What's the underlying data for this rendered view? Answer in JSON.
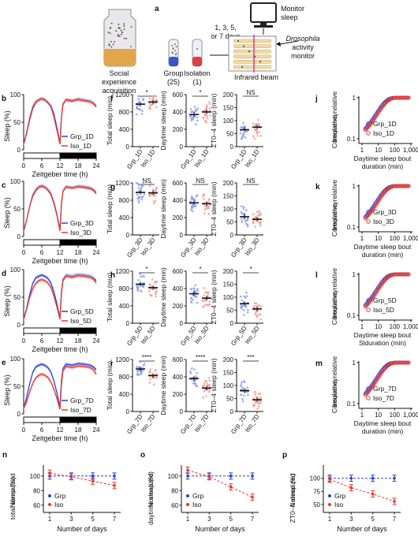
{
  "figure": {
    "schematic": {
      "panel": "a",
      "social_experience": "Social\nexperience\nacquisition",
      "group": "Group\n(25)",
      "isolation": "Isolation\n(1)",
      "days": "1, 3, 5,\nor 7 days",
      "monitor": "Monitor\nsleep",
      "drosophila": "Drosophila\nactivity\nmonitor",
      "infrared": "Infrared beam"
    },
    "colors": {
      "grp": "#2b3fe0",
      "iso": "#e8382a",
      "grp_light": "#8fa0f5",
      "iso_light": "#f5a098",
      "dark_bar": "#000000"
    }
  },
  "chart_data": [
    {
      "panel": "b",
      "type": "line",
      "xlabel": "Zeitgeber time (h)",
      "ylabel": "Sleep (%)",
      "x": [
        0,
        1,
        2,
        3,
        4,
        5,
        6,
        7,
        8,
        9,
        10,
        11,
        12,
        12.5,
        13,
        14,
        16,
        18,
        20,
        22,
        23,
        24
      ],
      "xticks": [
        0,
        6,
        12,
        18,
        24
      ],
      "yticks": [
        0,
        50,
        100
      ],
      "ylim": [
        0,
        100
      ],
      "xlim": [
        0,
        24
      ],
      "series": [
        {
          "name": "Grp_1D",
          "values": [
            10,
            30,
            55,
            75,
            85,
            90,
            92,
            90,
            85,
            80,
            65,
            40,
            12,
            60,
            82,
            90,
            88,
            92,
            90,
            88,
            85,
            80
          ]
        },
        {
          "name": "Iso_1D",
          "values": [
            10,
            32,
            58,
            78,
            87,
            91,
            93,
            91,
            86,
            78,
            60,
            35,
            10,
            58,
            83,
            91,
            89,
            91,
            89,
            87,
            84,
            78
          ]
        }
      ]
    },
    {
      "panel": "c",
      "type": "line",
      "xlabel": "Zeitgeber time (h)",
      "ylabel": "Sleep (%)",
      "x": [
        0,
        1,
        2,
        3,
        4,
        5,
        6,
        7,
        8,
        9,
        10,
        11,
        12,
        12.5,
        13,
        14,
        16,
        18,
        20,
        22,
        23,
        24
      ],
      "xticks": [
        0,
        6,
        12,
        18,
        24
      ],
      "yticks": [
        0,
        50,
        100
      ],
      "ylim": [
        0,
        100
      ],
      "xlim": [
        0,
        24
      ],
      "series": [
        {
          "name": "Grp_3D",
          "values": [
            10,
            30,
            55,
            75,
            85,
            90,
            92,
            90,
            85,
            78,
            62,
            40,
            12,
            60,
            82,
            90,
            88,
            91,
            90,
            88,
            85,
            80
          ]
        },
        {
          "name": "Iso_3D",
          "values": [
            10,
            30,
            55,
            73,
            83,
            89,
            91,
            89,
            84,
            76,
            60,
            38,
            10,
            58,
            82,
            90,
            88,
            90,
            89,
            87,
            84,
            78
          ]
        }
      ]
    },
    {
      "panel": "d",
      "type": "line",
      "xlabel": "Zeitgeber time (h)",
      "ylabel": "Sleep (%)",
      "x": [
        0,
        1,
        2,
        3,
        4,
        5,
        6,
        7,
        8,
        9,
        10,
        11,
        12,
        12.5,
        13,
        14,
        16,
        18,
        20,
        22,
        23,
        24
      ],
      "xticks": [
        0,
        6,
        12,
        18,
        24
      ],
      "yticks": [
        0,
        50,
        100
      ],
      "ylim": [
        0,
        100
      ],
      "xlim": [
        0,
        24
      ],
      "series": [
        {
          "name": "Grp_5D",
          "values": [
            10,
            30,
            55,
            75,
            85,
            88,
            90,
            88,
            84,
            76,
            60,
            38,
            12,
            60,
            82,
            90,
            88,
            91,
            90,
            88,
            85,
            80
          ]
        },
        {
          "name": "Iso_5D",
          "values": [
            10,
            28,
            50,
            65,
            75,
            80,
            82,
            80,
            76,
            68,
            52,
            32,
            10,
            56,
            80,
            88,
            86,
            89,
            88,
            86,
            83,
            76
          ]
        }
      ]
    },
    {
      "panel": "e",
      "type": "line",
      "xlabel": "Zeitgeber time (h)",
      "ylabel": "Sleep (%)",
      "x": [
        0,
        1,
        2,
        3,
        4,
        5,
        6,
        7,
        8,
        9,
        10,
        11,
        12,
        12.5,
        13,
        14,
        16,
        18,
        20,
        22,
        23,
        24
      ],
      "xticks": [
        0,
        6,
        12,
        18,
        24
      ],
      "yticks": [
        0,
        50,
        100
      ],
      "ylim": [
        0,
        100
      ],
      "xlim": [
        0,
        24
      ],
      "series": [
        {
          "name": "Grp_7D",
          "values": [
            10,
            30,
            55,
            75,
            85,
            88,
            90,
            88,
            84,
            76,
            60,
            38,
            12,
            60,
            82,
            90,
            88,
            91,
            90,
            88,
            85,
            80
          ]
        },
        {
          "name": "Iso_7D",
          "values": [
            10,
            22,
            40,
            55,
            65,
            70,
            72,
            70,
            66,
            58,
            45,
            28,
            8,
            52,
            78,
            86,
            84,
            87,
            86,
            84,
            80,
            72
          ]
        }
      ]
    },
    {
      "panel": "f",
      "type": "scatter",
      "subplots": [
        {
          "ylabel": "Total sleep (min)",
          "ylim": [
            0,
            1200
          ],
          "yticks": [
            0,
            400,
            800,
            1200
          ],
          "categories": [
            "Grp_1D",
            "Iso_1D"
          ],
          "means": [
            980,
            1030
          ],
          "sig": "*"
        },
        {
          "ylabel": "Daytime sleep (min)",
          "ylim": [
            0,
            600
          ],
          "yticks": [
            0,
            200,
            400,
            600
          ],
          "categories": [
            "Grp_1D",
            "Iso_1D"
          ],
          "means": [
            370,
            400
          ],
          "sig": "*"
        },
        {
          "ylabel": "ZT0–4 sleep (min)",
          "ylim": [
            0,
            200
          ],
          "yticks": [
            0,
            50,
            100,
            150,
            200
          ],
          "categories": [
            "Grp_1D",
            "Iso_1D"
          ],
          "means": [
            65,
            75
          ],
          "sig": "NS"
        }
      ]
    },
    {
      "panel": "g",
      "type": "scatter",
      "subplots": [
        {
          "ylabel": "Total sleep (min)",
          "ylim": [
            0,
            1200
          ],
          "yticks": [
            0,
            400,
            800,
            1200
          ],
          "categories": [
            "Grp_3D",
            "Iso_3D"
          ],
          "means": [
            980,
            970
          ],
          "sig": "NS"
        },
        {
          "ylabel": "Daytime sleep (min)",
          "ylim": [
            0,
            600
          ],
          "yticks": [
            0,
            200,
            400,
            600
          ],
          "categories": [
            "Grp_3D",
            "Iso_3D"
          ],
          "means": [
            370,
            360
          ],
          "sig": "NS"
        },
        {
          "ylabel": "ZT0–4 sleep (min)",
          "ylim": [
            0,
            200
          ],
          "yticks": [
            0,
            50,
            100,
            150,
            200
          ],
          "categories": [
            "Grp_3D",
            "Iso_3D"
          ],
          "means": [
            70,
            60
          ],
          "sig": "NS"
        }
      ]
    },
    {
      "panel": "h",
      "type": "scatter",
      "subplots": [
        {
          "ylabel": "Total sleep (min)",
          "ylim": [
            0,
            1200
          ],
          "yticks": [
            0,
            400,
            800,
            1200
          ],
          "categories": [
            "Grp_5D",
            "Iso_5D"
          ],
          "means": [
            900,
            820
          ],
          "sig": "*"
        },
        {
          "ylabel": "Daytime sleep (min)",
          "ylim": [
            0,
            600
          ],
          "yticks": [
            0,
            200,
            400,
            600
          ],
          "categories": [
            "Grp_5D",
            "Iso_5D"
          ],
          "means": [
            340,
            290
          ],
          "sig": "*"
        },
        {
          "ylabel": "ZT0–4 sleep (min)",
          "ylim": [
            0,
            200
          ],
          "yticks": [
            0,
            50,
            100,
            150,
            200
          ],
          "categories": [
            "Grp_5D",
            "Iso_5D"
          ],
          "means": [
            75,
            55
          ],
          "sig": "*"
        }
      ]
    },
    {
      "panel": "i",
      "type": "scatter",
      "subplots": [
        {
          "ylabel": "Total sleep (min)",
          "ylim": [
            0,
            1200
          ],
          "yticks": [
            0,
            400,
            800,
            1200
          ],
          "categories": [
            "Grp_7D",
            "Iso_7D"
          ],
          "means": [
            980,
            830
          ],
          "sig": "****"
        },
        {
          "ylabel": "Daytime sleep (min)",
          "ylim": [
            0,
            600
          ],
          "yticks": [
            0,
            200,
            400,
            600
          ],
          "categories": [
            "Grp_7D",
            "Iso_7D"
          ],
          "means": [
            380,
            270
          ],
          "sig": "****"
        },
        {
          "ylabel": "ZT0–4 sleep (min)",
          "ylim": [
            0,
            200
          ],
          "yticks": [
            0,
            50,
            100,
            150,
            200
          ],
          "categories": [
            "Grp_7D",
            "Iso_7D"
          ],
          "means": [
            80,
            45
          ],
          "sig": "***"
        }
      ]
    },
    {
      "panel": "j",
      "type": "scatter",
      "xscale": "log",
      "yscale": "log",
      "ylabel": "Cumulative relative\nfrequency",
      "xlabel": "Daytime sleep bout\nduration (min)",
      "xticks": [
        "1",
        "10",
        "100",
        "1,000"
      ],
      "yticks": [
        "0.1",
        "1"
      ],
      "series": [
        {
          "name": "Grp_1D"
        },
        {
          "name": "Iso_1D"
        }
      ]
    },
    {
      "panel": "k",
      "type": "scatter",
      "xscale": "log",
      "yscale": "log",
      "ylabel": "Cumulative relative\nfrequency",
      "xlabel": "Daytime sleep bout\nduration (min)",
      "xticks": [
        "1",
        "10",
        "100",
        "1,000"
      ],
      "yticks": [
        "0.1",
        "1"
      ],
      "series": [
        {
          "name": "Grp_3D"
        },
        {
          "name": "Iso_3D"
        }
      ]
    },
    {
      "panel": "l",
      "type": "scatter",
      "xscale": "log",
      "yscale": "log",
      "ylabel": "Cumulative relative\nfrequency",
      "xlabel": "Daytime sleep bout\nSlduration (min)",
      "xticks": [
        "1",
        "10",
        "100",
        "1,000"
      ],
      "yticks": [
        "0.1",
        "1"
      ],
      "series": [
        {
          "name": "Grp_5D"
        },
        {
          "name": "Iso_5D"
        }
      ]
    },
    {
      "panel": "m",
      "type": "scatter",
      "xscale": "log",
      "yscale": "log",
      "ylabel": "Cumulative relative\nfrequency",
      "xlabel": "Daytime sleep bout\nduration (min)",
      "xticks": [
        "1",
        "10",
        "100",
        "1,000"
      ],
      "yticks": [
        "0.1",
        "1"
      ],
      "series": [
        {
          "name": "Grp_7D"
        },
        {
          "name": "Iso_7D"
        }
      ]
    },
    {
      "panel": "n",
      "type": "line",
      "ylabel": "Normalized\ntotal sleep (%)",
      "xlabel": "Number of days",
      "x": [
        1,
        3,
        5,
        7
      ],
      "ylim": [
        50,
        115
      ],
      "yticks": [
        60,
        80,
        100
      ],
      "series": [
        {
          "name": "Grp",
          "values": [
            100,
            100,
            100,
            100
          ]
        },
        {
          "name": "Iso",
          "values": [
            104,
            99,
            93,
            87
          ]
        }
      ]
    },
    {
      "panel": "o",
      "type": "line",
      "ylabel": "Normalized\ndaytime sleep (%)",
      "xlabel": "Number of days",
      "x": [
        1,
        3,
        5,
        7
      ],
      "ylim": [
        50,
        115
      ],
      "yticks": [
        60,
        80,
        100
      ],
      "series": [
        {
          "name": "Grp",
          "values": [
            100,
            100,
            100,
            100
          ]
        },
        {
          "name": "Iso",
          "values": [
            108,
            99,
            85,
            71
          ]
        }
      ]
    },
    {
      "panel": "p",
      "type": "line",
      "ylabel": "Normalized\nZT0–4 sleep (%)",
      "xlabel": "Number of days",
      "x": [
        1,
        3,
        5,
        7
      ],
      "ylim": [
        35,
        125
      ],
      "yticks": [
        50,
        75,
        100
      ],
      "series": [
        {
          "name": "Grp",
          "values": [
            100,
            100,
            100,
            100
          ]
        },
        {
          "name": "Iso",
          "values": [
            98,
            82,
            70,
            56
          ]
        }
      ]
    }
  ]
}
